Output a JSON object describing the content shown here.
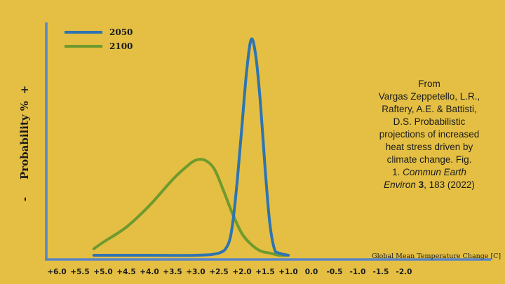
{
  "chart_data": {
    "type": "line",
    "title": "",
    "xlabel": "Global Mean Temperature Change [C]",
    "ylabel": "Probability %",
    "ylabel_plus": "+",
    "ylabel_minus": "-",
    "x_tick_labels": [
      "+6.0",
      "+5.5",
      "+5.0",
      "+4.5",
      "+4.0",
      "+3.5",
      "+3.0",
      "+2.5",
      "+2.0",
      "+1.5",
      "+1.0",
      "0.0",
      "-0.5",
      "-1.0",
      "-1.5",
      "-2.0"
    ],
    "x_range_note": "axis runs from +6.0 (left) to -2.0 (right); y axis unlabeled probability",
    "series": [
      {
        "name": "2050",
        "color": "#2E74B2",
        "points": [
          [
            5.2,
            0
          ],
          [
            4.0,
            0
          ],
          [
            3.0,
            0
          ],
          [
            2.5,
            0.01
          ],
          [
            2.3,
            0.05
          ],
          [
            2.2,
            0.15
          ],
          [
            2.1,
            0.35
          ],
          [
            2.0,
            0.6
          ],
          [
            1.9,
            0.85
          ],
          [
            1.8,
            1.0
          ],
          [
            1.7,
            0.92
          ],
          [
            1.6,
            0.7
          ],
          [
            1.5,
            0.4
          ],
          [
            1.4,
            0.15
          ],
          [
            1.3,
            0.03
          ],
          [
            1.2,
            0.01
          ],
          [
            1.0,
            0
          ]
        ]
      },
      {
        "name": "2100",
        "color": "#6F9A2E",
        "points": [
          [
            5.2,
            0.03
          ],
          [
            5.0,
            0.06
          ],
          [
            4.5,
            0.13
          ],
          [
            4.0,
            0.23
          ],
          [
            3.5,
            0.35
          ],
          [
            3.2,
            0.41
          ],
          [
            3.0,
            0.44
          ],
          [
            2.8,
            0.44
          ],
          [
            2.6,
            0.4
          ],
          [
            2.4,
            0.3
          ],
          [
            2.2,
            0.19
          ],
          [
            2.0,
            0.1
          ],
          [
            1.8,
            0.05
          ],
          [
            1.6,
            0.02
          ],
          [
            1.4,
            0.01
          ],
          [
            1.2,
            0.0
          ],
          [
            1.0,
            0.0
          ]
        ]
      }
    ],
    "legend": "top-left",
    "grid": false
  },
  "citation": {
    "line1": "From",
    "line2": "Vargas Zeppetello, L.R.,",
    "line3": "Raftery, A.E. & Battisti,",
    "line4": "D.S. Probabilistic",
    "line5": "projections of increased",
    "line6": "heat stress driven by",
    "line7": "climate change. Fig.",
    "line8_num": "1.",
    "line8_journal": "Commun Earth",
    "line9_journal": "Environ",
    "line9_volume": "3",
    "line9_rest": ", 183 (2022)"
  },
  "colors": {
    "background": "#E4BF43",
    "axis": "#5B84C4"
  }
}
